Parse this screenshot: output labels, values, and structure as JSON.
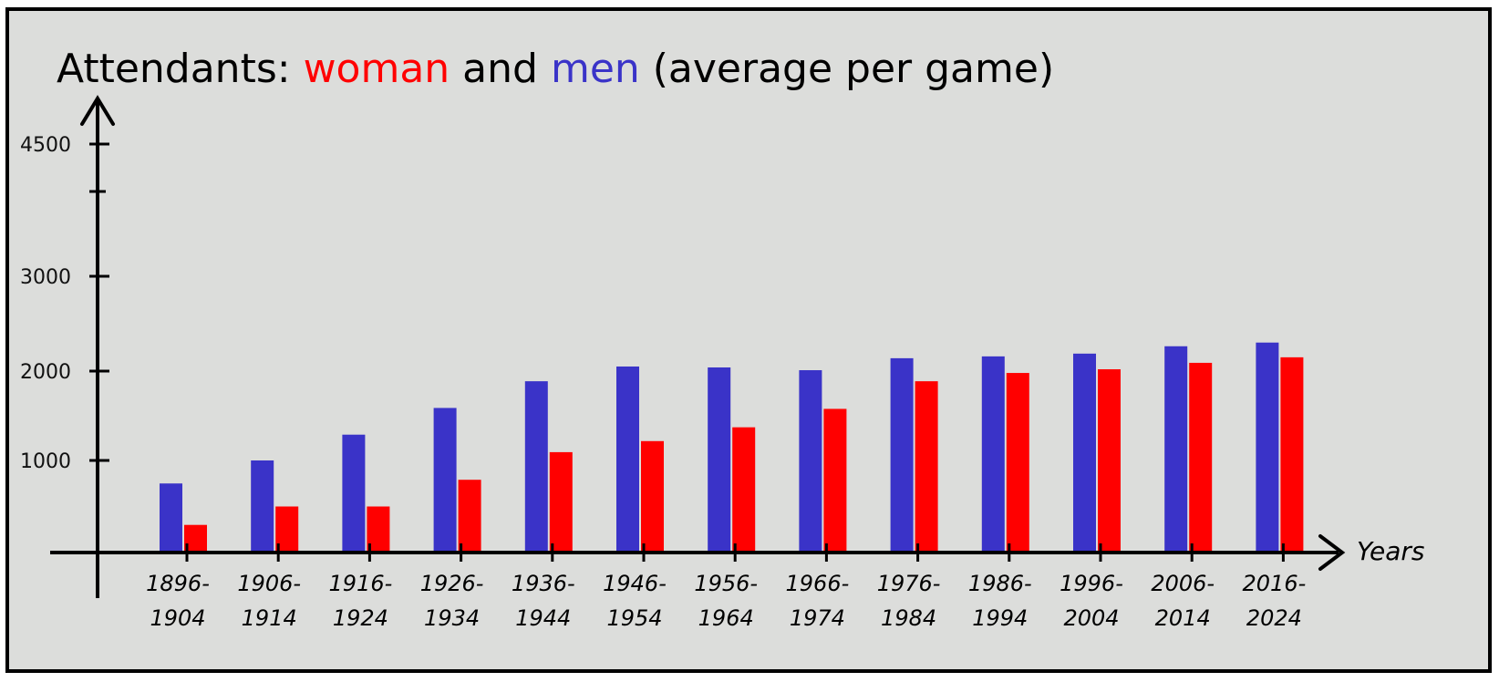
{
  "chart_data": {
    "type": "bar",
    "title_parts": [
      {
        "text": "Attendants: ",
        "color": "#000000"
      },
      {
        "text": "woman",
        "color": "#ff0000"
      },
      {
        "text": " and ",
        "color": "#000000"
      },
      {
        "text": "men",
        "color": "#3a33c8"
      },
      {
        "text": " (average per game)",
        "color": "#000000"
      }
    ],
    "xlabel": "Years",
    "ylabel": "",
    "yticks": [
      1000,
      2000,
      3000,
      4500
    ],
    "ylim": [
      0,
      4500
    ],
    "categories": [
      {
        "line1": "1896-",
        "line2": "1904"
      },
      {
        "line1": "1906-",
        "line2": "1914"
      },
      {
        "line1": "1916-",
        "line2": "1924"
      },
      {
        "line1": "1926-",
        "line2": "1934"
      },
      {
        "line1": "1936-",
        "line2": "1944"
      },
      {
        "line1": "1946-",
        "line2": "1954"
      },
      {
        "line1": "1956-",
        "line2": "1964"
      },
      {
        "line1": "1966-",
        "line2": "1974"
      },
      {
        "line1": "1976-",
        "line2": "1984"
      },
      {
        "line1": "1986-",
        "line2": "1994"
      },
      {
        "line1": "1996-",
        "line2": "2004"
      },
      {
        "line1": "2006-",
        "line2": "2014"
      },
      {
        "line1": "2016-",
        "line2": "2024"
      }
    ],
    "series": [
      {
        "name": "men",
        "color": "#3a33c8",
        "values": [
          750,
          1000,
          1280,
          1570,
          1860,
          2020,
          2010,
          1980,
          2110,
          2130,
          2160,
          2240,
          2280
        ]
      },
      {
        "name": "woman",
        "color": "#ff0000",
        "values": [
          300,
          500,
          500,
          790,
          1090,
          1210,
          1360,
          1560,
          1860,
          1950,
          1990,
          2060,
          2120
        ]
      }
    ]
  }
}
